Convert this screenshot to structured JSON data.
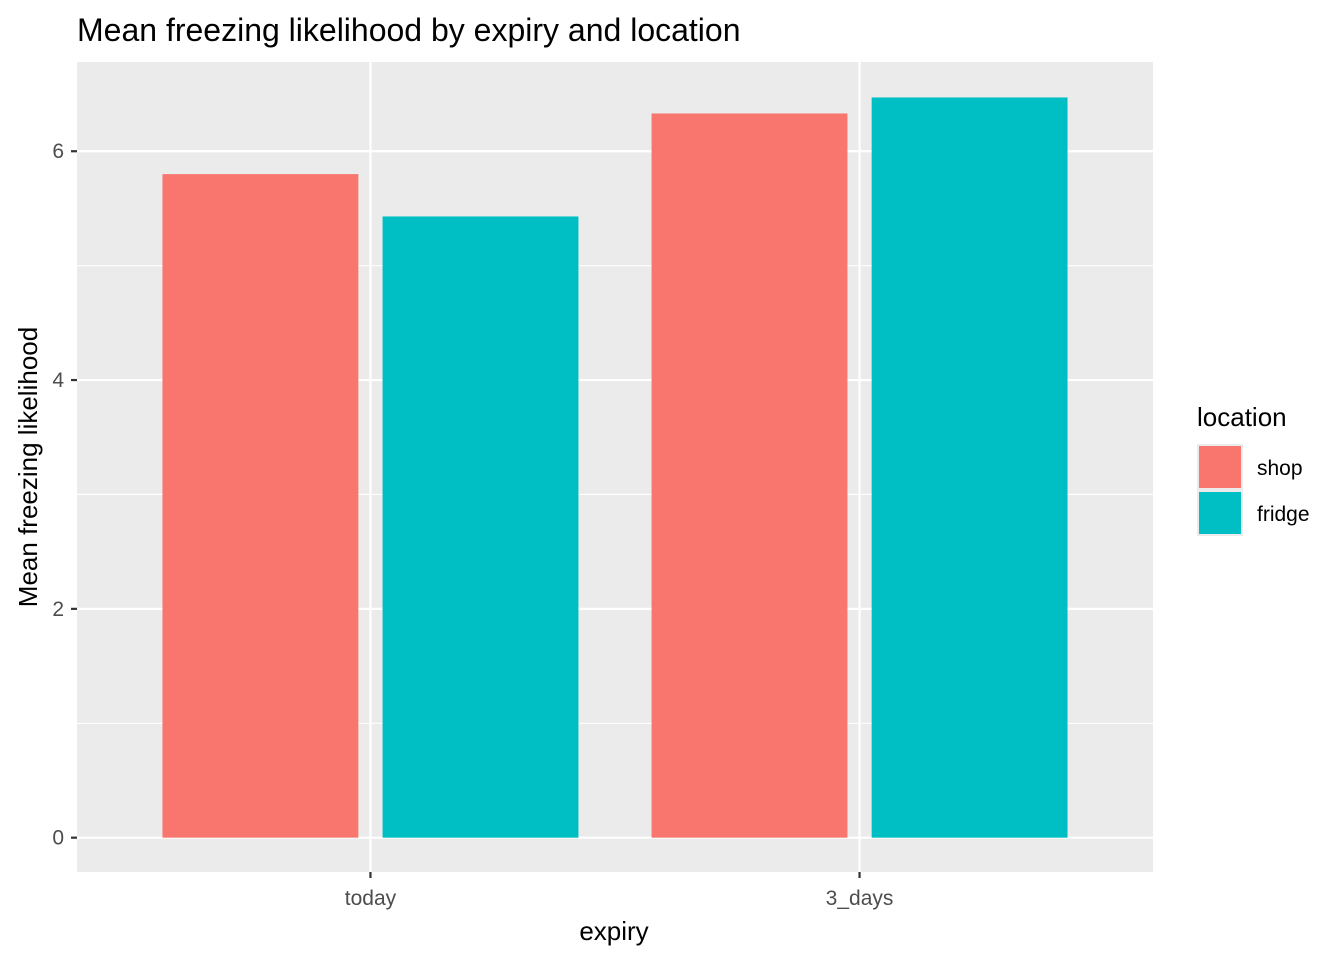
{
  "chart_data": {
    "type": "bar",
    "title": "Mean freezing likelihood by expiry and location",
    "xlabel": "expiry",
    "ylabel": "Mean freezing likelihood",
    "categories": [
      "today",
      "3_days"
    ],
    "series": [
      {
        "name": "shop",
        "color": "#F8766D",
        "values": [
          5.8,
          6.33
        ]
      },
      {
        "name": "fridge",
        "color": "#00BFC4",
        "values": [
          5.43,
          6.47
        ]
      }
    ],
    "y_ticks": [
      0,
      2,
      4,
      6
    ],
    "y_tick_labels": [
      "0",
      "2",
      "4",
      "6"
    ],
    "ylim": [
      -0.3,
      6.78
    ],
    "grid": true,
    "legend": {
      "title": "location",
      "position": "right"
    },
    "panel_background": "#EBEBEB",
    "grid_color": "#FFFFFF"
  }
}
